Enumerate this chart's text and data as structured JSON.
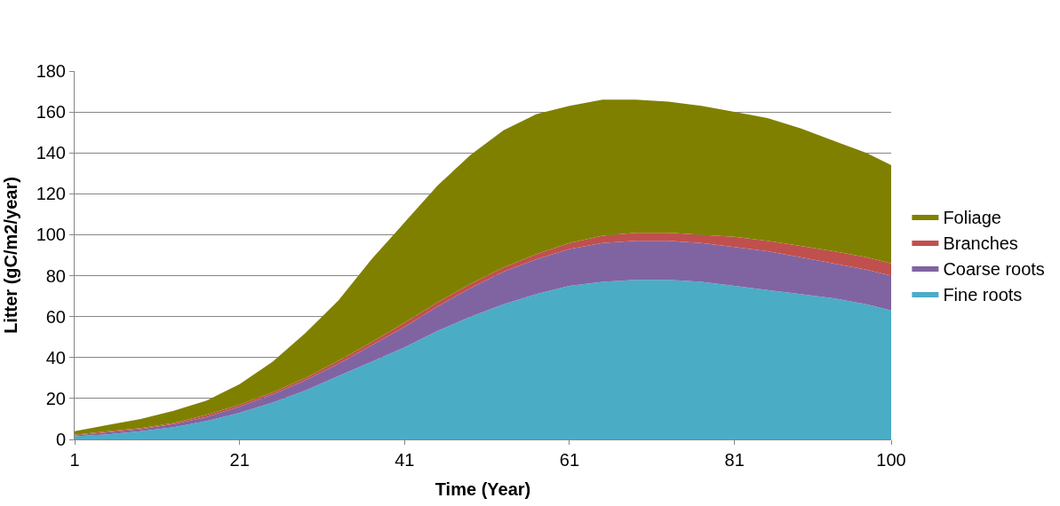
{
  "chart_data": {
    "type": "area",
    "stacked": true,
    "xlabel": "Time (Year)",
    "ylabel": "Litter (gC/m2/year)",
    "x": [
      1,
      5,
      9,
      13,
      17,
      21,
      25,
      29,
      33,
      37,
      41,
      45,
      49,
      53,
      57,
      61,
      65,
      69,
      73,
      77,
      81,
      85,
      89,
      93,
      97,
      100
    ],
    "xlim": [
      1,
      100
    ],
    "xticks": [
      1,
      21,
      41,
      61,
      81,
      100
    ],
    "ylim": [
      0,
      180
    ],
    "yticks": [
      0,
      20,
      40,
      60,
      80,
      100,
      120,
      140,
      160,
      180
    ],
    "grid": "y",
    "legend": "right",
    "series": [
      {
        "name": "Fine roots",
        "color": "#4bacc6",
        "values": [
          1.5,
          2.5,
          4,
          6,
          9,
          13,
          18,
          24,
          31,
          38,
          45,
          53,
          60,
          66,
          71,
          75,
          77,
          78,
          78,
          77,
          75,
          73,
          71,
          69,
          66,
          63
        ]
      },
      {
        "name": "Coarse roots",
        "color": "#8064a2",
        "values": [
          0.5,
          1,
          1,
          1.5,
          2,
          3,
          4,
          5,
          6,
          8,
          10,
          12,
          14,
          16,
          17,
          18,
          19,
          19,
          19,
          19,
          19,
          19,
          18,
          17,
          17,
          17
        ]
      },
      {
        "name": "Branches",
        "color": "#c0504d",
        "values": [
          0.3,
          0.5,
          0.5,
          0.5,
          1,
          1,
          1,
          1,
          1.5,
          1.5,
          2,
          2,
          2,
          2,
          2.5,
          3,
          3.5,
          4,
          4,
          4,
          5,
          5,
          5.5,
          6,
          6,
          6
        ]
      },
      {
        "name": "Foliage",
        "color": "#808000",
        "values": [
          1.7,
          3,
          4.5,
          6,
          7,
          10,
          15,
          22,
          29.5,
          40.5,
          49,
          57,
          63,
          67,
          68.5,
          67,
          66.5,
          65,
          64,
          63,
          61,
          60,
          57.5,
          54,
          51,
          48
        ]
      }
    ]
  }
}
